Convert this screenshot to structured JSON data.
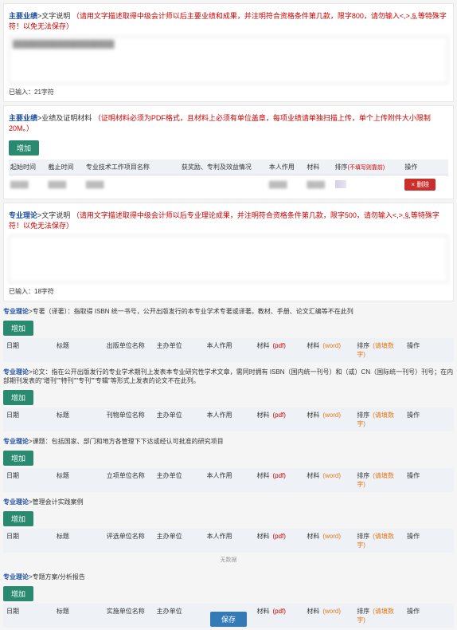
{
  "section1": {
    "title_blue": "主要业绩",
    "sep": ">",
    "title_black": "文字说明",
    "title_red": "（请用文字描述取得中级会计师以后主要业绩和成果，并注明符合资格条件第几款，限字800，请勿输入<,>,§,等特殊字符！以免无法保存）",
    "textarea_placeholder": "████████████████████",
    "counter": "已输入：21字符"
  },
  "section2": {
    "title_blue": "主要业绩",
    "sep": ">",
    "title_black": "业绩及证明材料",
    "title_red": "（证明材料必须为PDF格式，且材料上必须有单位盖章，每项业绩请单独扫描上传，单个上传附件大小限制20M。）",
    "btn_add": "增加",
    "headers": [
      "起始时间",
      "截止时间",
      "专业技术工作项目名称",
      "获奖励、专利及效益情况",
      "本人作用",
      "材料",
      "排序",
      "操作"
    ],
    "sort_note": "(不填写则靠前)",
    "btn_del": "× 删除",
    "row": [
      "████",
      "████",
      "████",
      "",
      "████",
      "████",
      "",
      "",
      ""
    ]
  },
  "section3": {
    "title_blue": "专业理论",
    "sep": ">",
    "title_black": "文字说明",
    "title_red": "（请用文字描述取得中级会计师以后专业理论成果，并注明符合资格条件第几款，限字500，请勿输入<,>,§,等特殊字符！以免无法保存）",
    "textarea_placeholder": "",
    "counter": "已输入：18字符"
  },
  "sub_sections": [
    {
      "title_blue": "专业理论",
      "title_black": ">专著（译著）：指取得 ISBN 统一书号，公开出版发行的本专业学术专著或译著。教材、手册、论文汇编等不在此列",
      "btn": "增加",
      "headers": [
        "日期",
        "标题",
        "出版单位名称",
        "主办单位",
        "本人作用",
        "材料",
        "材料",
        "排序",
        "操作"
      ],
      "h_note1": "(pdf)",
      "h_note2": "(word)",
      "h_note3": "(请填数字)"
    },
    {
      "title_blue": "专业理论",
      "title_black": ">论文：指在公开出版发行的专业学术期刊上发表本专业研究性学术文章，需同时拥有 ISBN（国内统一刊号）和（或）CN（国际统一刊号）刊号；在内部期刊发表的\"增刊\"\"特刊\"\"专刊\"\"专辑\"等形式上发表的论文不在此列。",
      "btn": "增加",
      "headers": [
        "日期",
        "标题",
        "刊物单位名称",
        "主办单位",
        "本人作用",
        "材料",
        "材料",
        "排序",
        "操作"
      ],
      "h_note1": "(pdf)",
      "h_note2": "(word)",
      "h_note3": "(请填数字)"
    },
    {
      "title_blue": "专业理论",
      "title_black": ">课题：包括国家、部门和地方各管理下下达或经认可批准的研究项目",
      "btn": "增加",
      "headers": [
        "日期",
        "标题",
        "立项单位名称",
        "主办单位",
        "本人作用",
        "材料",
        "材料",
        "排序",
        "操作"
      ],
      "h_note1": "(pdf)",
      "h_note2": "(word)",
      "h_note3": "(请填数字)"
    },
    {
      "title_blue": "专业理论",
      "title_black": ">管理会计实践案例",
      "btn": "增加",
      "headers": [
        "日期",
        "标题",
        "评选单位名称",
        "主办单位",
        "本人作用",
        "材料",
        "材料",
        "排序",
        "操作"
      ],
      "h_note1": "(pdf)",
      "h_note2": "(word)",
      "h_note3": "(请填数字)",
      "footer": "无数据"
    },
    {
      "title_blue": "专业理论",
      "title_black": ">专题方案/分析报告",
      "btn": "增加",
      "headers": [
        "日期",
        "标题",
        "实施单位名称",
        "主办单位",
        "",
        "材料",
        "材料",
        "排序",
        "操作"
      ],
      "h_note1": "(pdf)",
      "h_note2": "(word)",
      "h_note3": "(请填数字)"
    }
  ],
  "btn_save": "保存"
}
